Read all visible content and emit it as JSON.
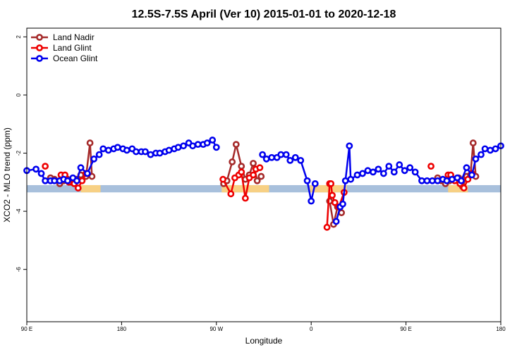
{
  "chart_data": {
    "type": "line",
    "title": "12.5S-7.5S April (Ver 10)   2015-01-01 to 2020-12-18",
    "xlabel": "Longitude",
    "ylabel": "XCO2 - MLO trend (ppm)",
    "xlim": [
      90,
      450
    ],
    "ylim": [
      -7.8,
      2.3
    ],
    "x_ticks": [
      {
        "value": 90,
        "label": "90 E"
      },
      {
        "value": 162,
        "label": "180"
      },
      {
        "value": 234,
        "label": "90 W"
      },
      {
        "value": 306,
        "label": "0"
      },
      {
        "value": 378,
        "label": "90 E"
      },
      {
        "value": 450,
        "label": "180"
      }
    ],
    "y_ticks": [
      {
        "value": 2,
        "label": "2"
      },
      {
        "value": 0,
        "label": "0"
      },
      {
        "value": -2,
        "label": "-2"
      },
      {
        "value": -4,
        "label": "-4"
      },
      {
        "value": -6,
        "label": "-6"
      }
    ],
    "grid": false,
    "legend_position": "top-left",
    "band": {
      "y_min": -3.35,
      "y_max": -3.1,
      "color": "#a8c0dc"
    },
    "land_bands": [
      {
        "x_min": 131,
        "x_max": 146,
        "color": "#ffd27a"
      },
      {
        "x_min": 238,
        "x_max": 274,
        "color": "#ffd27a"
      },
      {
        "x_min": 305,
        "x_max": 333,
        "color": "#ffd27a"
      },
      {
        "x_min": 410,
        "x_max": 425,
        "color": "#ffd27a"
      }
    ],
    "series": [
      {
        "name": "Land Nadir",
        "color": "#a52a2a",
        "segments": [
          [
            [
              108,
              -2.85
            ],
            [
              111,
              -2.9
            ],
            [
              115,
              -3.05
            ],
            [
              118,
              -2.95
            ],
            [
              121,
              -2.9
            ],
            [
              124,
              -3.0
            ],
            [
              128,
              -2.9
            ],
            [
              131,
              -2.75
            ],
            [
              135,
              -2.8
            ],
            [
              138,
              -1.65
            ],
            [
              139.5,
              -2.8
            ]
          ],
          [
            [
              239.5,
              -3.05
            ],
            [
              242,
              -2.95
            ],
            [
              246,
              -2.3
            ],
            [
              249,
              -1.7
            ],
            [
              253,
              -2.45
            ],
            [
              256,
              -2.9
            ],
            [
              259,
              -2.75
            ],
            [
              262,
              -2.35
            ],
            [
              265,
              -2.95
            ],
            [
              268,
              -2.8
            ]
          ],
          [
            [
              320,
              -3.65
            ],
            [
              323,
              -4.45
            ],
            [
              326,
              -3.85
            ],
            [
              329,
              -4.05
            ]
          ],
          [
            [
              402,
              -2.85
            ],
            [
              405,
              -2.95
            ],
            [
              408,
              -3.05
            ],
            [
              411,
              -2.95
            ],
            [
              414,
              -2.9
            ],
            [
              418,
              -2.85
            ],
            [
              421,
              -3.15
            ],
            [
              424,
              -2.8
            ],
            [
              427,
              -2.75
            ],
            [
              429,
              -1.65
            ],
            [
              431,
              -2.8
            ]
          ]
        ]
      },
      {
        "name": "Land Glint",
        "color": "#ee0000",
        "segments": [
          [
            [
              104,
              -2.45
            ]
          ],
          [
            [
              116,
              -2.75
            ],
            [
              119,
              -2.75
            ],
            [
              122,
              -3.0
            ],
            [
              126,
              -3.05
            ],
            [
              129,
              -3.2
            ],
            [
              132,
              -2.95
            ],
            [
              135,
              -2.7
            ]
          ],
          [
            [
              239,
              -2.9
            ],
            [
              245,
              -3.4
            ],
            [
              248,
              -2.85
            ],
            [
              251,
              -2.75
            ],
            [
              253,
              -2.65
            ],
            [
              256,
              -3.55
            ],
            [
              259,
              -2.85
            ],
            [
              262,
              -2.75
            ],
            [
              264,
              -2.55
            ],
            [
              267,
              -2.5
            ]
          ],
          [
            [
              318,
              -4.55
            ],
            [
              320,
              -3.05
            ],
            [
              321,
              -3.05
            ],
            [
              322,
              -3.45
            ],
            [
              324,
              -3.7
            ],
            [
              327,
              -3.85
            ],
            [
              331,
              -3.35
            ]
          ],
          [
            [
              397,
              -2.45
            ]
          ],
          [
            [
              410,
              -2.75
            ],
            [
              412,
              -2.75
            ],
            [
              415,
              -2.95
            ],
            [
              419,
              -3.05
            ],
            [
              422,
              -3.2
            ],
            [
              425,
              -2.9
            ],
            [
              428,
              -2.7
            ]
          ]
        ]
      },
      {
        "name": "Ocean Glint",
        "color": "#0000ee",
        "segments": [
          [
            [
              90,
              -2.6
            ],
            [
              97,
              -2.55
            ],
            [
              101,
              -2.7
            ],
            [
              104,
              -2.95
            ],
            [
              108,
              -2.95
            ],
            [
              111,
              -2.95
            ],
            [
              115,
              -2.95
            ],
            [
              118,
              -2.9
            ],
            [
              121,
              -2.95
            ],
            [
              125,
              -2.85
            ],
            [
              128,
              -2.95
            ],
            [
              131,
              -2.5
            ],
            [
              136,
              -2.7
            ],
            [
              141,
              -2.2
            ],
            [
              145,
              -2.05
            ],
            [
              148,
              -1.85
            ],
            [
              152,
              -1.9
            ],
            [
              156,
              -1.85
            ],
            [
              159,
              -1.8
            ],
            [
              163,
              -1.85
            ],
            [
              166,
              -1.9
            ],
            [
              170,
              -1.85
            ],
            [
              173,
              -1.95
            ],
            [
              177,
              -1.95
            ],
            [
              180,
              -1.95
            ],
            [
              184,
              -2.05
            ],
            [
              188,
              -2.0
            ],
            [
              191,
              -2.0
            ],
            [
              195,
              -1.95
            ],
            [
              198,
              -1.9
            ],
            [
              202,
              -1.85
            ],
            [
              205,
              -1.8
            ],
            [
              209,
              -1.75
            ],
            [
              213,
              -1.65
            ],
            [
              216,
              -1.75
            ],
            [
              220,
              -1.7
            ],
            [
              224,
              -1.7
            ],
            [
              227,
              -1.65
            ],
            [
              231,
              -1.55
            ],
            [
              234,
              -1.8
            ]
          ],
          [
            [
              269,
              -2.05
            ],
            [
              272,
              -2.2
            ],
            [
              276,
              -2.15
            ],
            [
              280,
              -2.15
            ],
            [
              283,
              -2.05
            ],
            [
              287,
              -2.05
            ],
            [
              290,
              -2.25
            ],
            [
              294,
              -2.15
            ],
            [
              298,
              -2.25
            ],
            [
              303,
              -2.95
            ],
            [
              306,
              -3.65
            ],
            [
              309,
              -3.05
            ]
          ],
          [
            [
              325,
              -4.35
            ],
            [
              328,
              -3.85
            ],
            [
              330,
              -3.75
            ],
            [
              332,
              -2.95
            ],
            [
              335,
              -1.75
            ],
            [
              336,
              -2.9
            ],
            [
              341,
              -2.75
            ],
            [
              345,
              -2.7
            ],
            [
              349,
              -2.6
            ],
            [
              353,
              -2.65
            ],
            [
              357,
              -2.55
            ],
            [
              361,
              -2.7
            ],
            [
              365,
              -2.45
            ],
            [
              369,
              -2.65
            ],
            [
              373,
              -2.4
            ],
            [
              377,
              -2.6
            ],
            [
              381,
              -2.5
            ],
            [
              385,
              -2.65
            ],
            [
              390,
              -2.95
            ],
            [
              394,
              -2.95
            ],
            [
              398,
              -2.95
            ],
            [
              402,
              -2.95
            ],
            [
              406,
              -2.9
            ],
            [
              409,
              -2.95
            ],
            [
              413,
              -2.9
            ],
            [
              417,
              -2.85
            ],
            [
              420,
              -2.95
            ],
            [
              424,
              -2.5
            ],
            [
              428,
              -2.75
            ],
            [
              431,
              -2.2
            ],
            [
              435,
              -2.05
            ],
            [
              438,
              -1.85
            ],
            [
              442,
              -1.9
            ],
            [
              446,
              -1.85
            ],
            [
              450,
              -1.75
            ]
          ]
        ]
      }
    ]
  }
}
